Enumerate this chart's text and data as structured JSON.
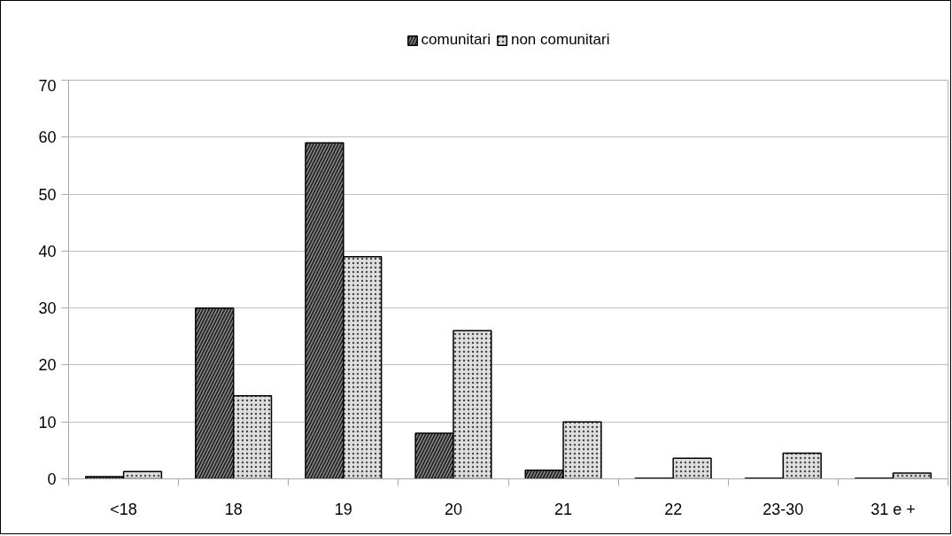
{
  "chart_data": {
    "type": "bar",
    "categories": [
      "<18",
      "18",
      "19",
      "20",
      "21",
      "22",
      "23-30",
      "31 e +"
    ],
    "series": [
      {
        "name": "comunitari",
        "color": "#262626",
        "values": [
          0.4,
          30,
          59,
          8,
          1.5,
          0.1,
          0.1,
          0.1
        ]
      },
      {
        "name": "non comunitari",
        "color": "#dedede",
        "values": [
          1.3,
          14.6,
          39,
          26,
          10,
          3.6,
          4.5,
          1.0
        ]
      }
    ],
    "ylim": [
      0,
      70
    ],
    "yticks": [
      0,
      10,
      20,
      30,
      40,
      50,
      60,
      70
    ],
    "grid": "y",
    "legend": "top"
  }
}
